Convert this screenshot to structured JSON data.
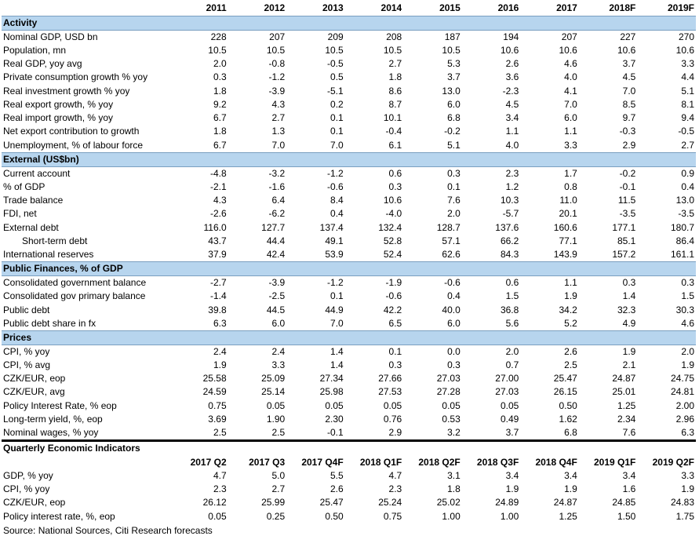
{
  "annual": {
    "years": [
      "2011",
      "2012",
      "2013",
      "2014",
      "2015",
      "2016",
      "2017",
      "2018F",
      "2019F"
    ],
    "sections": [
      {
        "title": "Activity",
        "rows": [
          {
            "label": "Nominal GDP, USD bn",
            "values": [
              "228",
              "207",
              "209",
              "208",
              "187",
              "194",
              "207",
              "227",
              "270"
            ]
          },
          {
            "label": "Population, mn",
            "values": [
              "10.5",
              "10.5",
              "10.5",
              "10.5",
              "10.5",
              "10.6",
              "10.6",
              "10.6",
              "10.6"
            ]
          },
          {
            "label": "Real GDP, yoy avg",
            "values": [
              "2.0",
              "-0.8",
              "-0.5",
              "2.7",
              "5.3",
              "2.6",
              "4.6",
              "3.7",
              "3.3"
            ]
          },
          {
            "label": "Private consumption growth % yoy",
            "values": [
              "0.3",
              "-1.2",
              "0.5",
              "1.8",
              "3.7",
              "3.6",
              "4.0",
              "4.5",
              "4.4"
            ]
          },
          {
            "label": "Real investment growth % yoy",
            "values": [
              "1.8",
              "-3.9",
              "-5.1",
              "8.6",
              "13.0",
              "-2.3",
              "4.1",
              "7.0",
              "5.1"
            ]
          },
          {
            "label": "Real export growth, % yoy",
            "values": [
              "9.2",
              "4.3",
              "0.2",
              "8.7",
              "6.0",
              "4.5",
              "7.0",
              "8.5",
              "8.1"
            ]
          },
          {
            "label": "Real import growth, % yoy",
            "values": [
              "6.7",
              "2.7",
              "0.1",
              "10.1",
              "6.8",
              "3.4",
              "6.0",
              "9.7",
              "9.4"
            ]
          },
          {
            "label": "Net export contribution to growth",
            "values": [
              "1.8",
              "1.3",
              "0.1",
              "-0.4",
              "-0.2",
              "1.1",
              "1.1",
              "-0.3",
              "-0.5"
            ]
          },
          {
            "label": "Unemployment, % of labour force",
            "values": [
              "6.7",
              "7.0",
              "7.0",
              "6.1",
              "5.1",
              "4.0",
              "3.3",
              "2.9",
              "2.7"
            ]
          }
        ]
      },
      {
        "title": "External (US$bn)",
        "rows": [
          {
            "label": "Current account",
            "values": [
              "-4.8",
              "-3.2",
              "-1.2",
              "0.6",
              "0.3",
              "2.3",
              "1.7",
              "-0.2",
              "0.9"
            ]
          },
          {
            "label": "% of GDP",
            "values": [
              "-2.1",
              "-1.6",
              "-0.6",
              "0.3",
              "0.1",
              "1.2",
              "0.8",
              "-0.1",
              "0.4"
            ]
          },
          {
            "label": "Trade balance",
            "values": [
              "4.3",
              "6.4",
              "8.4",
              "10.6",
              "7.6",
              "10.3",
              "11.0",
              "11.5",
              "13.0"
            ]
          },
          {
            "label": "FDI, net",
            "values": [
              "-2.6",
              "-6.2",
              "0.4",
              "-4.0",
              "2.0",
              "-5.7",
              "20.1",
              "-3.5",
              "-3.5"
            ]
          },
          {
            "label": "External debt",
            "values": [
              "116.0",
              "127.7",
              "137.4",
              "132.4",
              "128.7",
              "137.6",
              "160.6",
              "177.1",
              "180.7"
            ]
          },
          {
            "label": "Short-term debt",
            "indent": true,
            "values": [
              "43.7",
              "44.4",
              "49.1",
              "52.8",
              "57.1",
              "66.2",
              "77.1",
              "85.1",
              "86.4"
            ]
          },
          {
            "label": "International reserves",
            "values": [
              "37.9",
              "42.4",
              "53.9",
              "52.4",
              "62.6",
              "84.3",
              "143.9",
              "157.2",
              "161.1"
            ]
          }
        ]
      },
      {
        "title": "Public Finances, % of GDP",
        "rows": [
          {
            "label": "Consolidated government balance",
            "values": [
              "-2.7",
              "-3.9",
              "-1.2",
              "-1.9",
              "-0.6",
              "0.6",
              "1.1",
              "0.3",
              "0.3"
            ]
          },
          {
            "label": "Consolidated gov primary balance",
            "values": [
              "-1.4",
              "-2.5",
              "0.1",
              "-0.6",
              "0.4",
              "1.5",
              "1.9",
              "1.4",
              "1.5"
            ]
          },
          {
            "label": "Public debt",
            "values": [
              "39.8",
              "44.5",
              "44.9",
              "42.2",
              "40.0",
              "36.8",
              "34.2",
              "32.3",
              "30.3"
            ]
          },
          {
            "label": "Public debt share in fx",
            "values": [
              "6.3",
              "6.0",
              "7.0",
              "6.5",
              "6.0",
              "5.6",
              "5.2",
              "4.9",
              "4.6"
            ]
          }
        ]
      },
      {
        "title": "Prices",
        "rows": [
          {
            "label": "CPI, % yoy",
            "values": [
              "2.4",
              "2.4",
              "1.4",
              "0.1",
              "0.0",
              "2.0",
              "2.6",
              "1.9",
              "2.0"
            ]
          },
          {
            "label": "CPI, % avg",
            "values": [
              "1.9",
              "3.3",
              "1.4",
              "0.3",
              "0.3",
              "0.7",
              "2.5",
              "2.1",
              "1.9"
            ]
          },
          {
            "label": "CZK/EUR, eop",
            "values": [
              "25.58",
              "25.09",
              "27.34",
              "27.66",
              "27.03",
              "27.00",
              "25.47",
              "24.87",
              "24.75"
            ]
          },
          {
            "label": "CZK/EUR, avg",
            "values": [
              "24.59",
              "25.14",
              "25.98",
              "27.53",
              "27.28",
              "27.03",
              "26.15",
              "25.01",
              "24.81"
            ]
          },
          {
            "label": "Policy Interest Rate, % eop",
            "values": [
              "0.75",
              "0.05",
              "0.05",
              "0.05",
              "0.05",
              "0.05",
              "0.50",
              "1.25",
              "2.00"
            ]
          },
          {
            "label": "Long-term yield, %, eop",
            "values": [
              "3.69",
              "1.90",
              "2.30",
              "0.76",
              "0.53",
              "0.49",
              "1.62",
              "2.34",
              "2.96"
            ]
          },
          {
            "label": "Nominal wages, % yoy",
            "values": [
              "2.5",
              "2.5",
              "-0.1",
              "2.9",
              "3.2",
              "3.7",
              "6.8",
              "7.6",
              "6.3"
            ]
          }
        ]
      }
    ]
  },
  "quarterly": {
    "title": "Quarterly Economic Indicators",
    "quarters": [
      "2017 Q2",
      "2017 Q3",
      "2017 Q4F",
      "2018 Q1F",
      "2018 Q2F",
      "2018 Q3F",
      "2018 Q4F",
      "2019 Q1F",
      "2019 Q2F"
    ],
    "rows": [
      {
        "label": "GDP, % yoy",
        "values": [
          "4.7",
          "5.0",
          "5.5",
          "4.7",
          "3.1",
          "3.4",
          "3.4",
          "3.4",
          "3.3"
        ]
      },
      {
        "label": "CPI, % yoy",
        "values": [
          "2.3",
          "2.7",
          "2.6",
          "2.3",
          "1.8",
          "1.9",
          "1.9",
          "1.6",
          "1.9"
        ]
      },
      {
        "label": "CZK/EUR, eop",
        "values": [
          "26.12",
          "25.99",
          "25.47",
          "25.24",
          "25.02",
          "24.89",
          "24.87",
          "24.85",
          "24.83"
        ]
      },
      {
        "label": "Policy interest rate, %, eop",
        "values": [
          "0.05",
          "0.25",
          "0.50",
          "0.75",
          "1.00",
          "1.00",
          "1.25",
          "1.50",
          "1.75"
        ]
      }
    ]
  },
  "source": "Source: National Sources, Citi Research forecasts",
  "colors": {
    "section_fill": "#b7d5ee"
  }
}
